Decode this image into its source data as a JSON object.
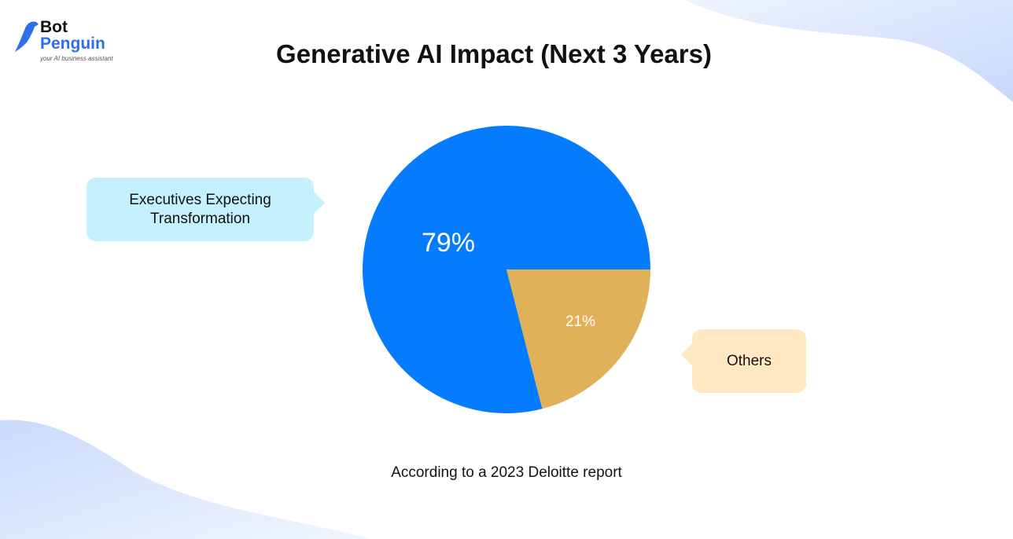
{
  "brand": {
    "name_line1": "Bot",
    "name_line2": "Penguin",
    "tagline": "your AI business assistant",
    "color": "#2f6fe8"
  },
  "chart_data": {
    "type": "pie",
    "title": "Generative AI Impact (Next 3 Years)",
    "slices": [
      {
        "label": "Executives Expecting Transformation",
        "value": 79,
        "value_label": "79%",
        "color": "#057cff"
      },
      {
        "label": "Others",
        "value": 21,
        "value_label": "21%",
        "color": "#e0b158"
      }
    ],
    "legend_placement": "callouts",
    "source": "According to a 2023 Deloitte report"
  },
  "colors": {
    "callout_blue": "#c4f1fd",
    "callout_tan": "#ffe8c2",
    "background_wave": "#d6e4fc"
  }
}
